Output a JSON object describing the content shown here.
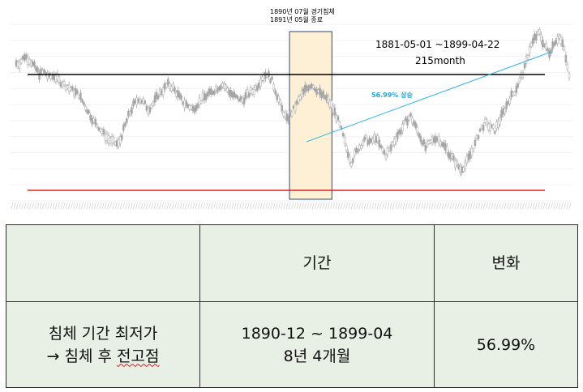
{
  "annotations": {
    "recession_line1": "1890년 07월 경기침체",
    "recession_line2": "1891년 05월 종료",
    "range": "1881-05-01  ~1899-04-22",
    "months": "215month",
    "gain": "56.99% 상승"
  },
  "table": {
    "header_col2": "기간",
    "header_col3": "변화",
    "row_label_line1": "침체 기간 최저가",
    "row_label_arrow": "→",
    "row_label_line2_a": "침체 후 ",
    "row_label_line2_b": "전고점",
    "period_line1": "1890-12 ~ 1899-04",
    "period_line2": "8년 4개월",
    "change": "56.99%"
  },
  "colors": {
    "candle": "#a6a6a6",
    "high_line": "#000000",
    "low_line": "#e02020",
    "trend_line": "#33b5e8",
    "recession_band": "#fdf0d5",
    "accent_text": "#1aa8e0"
  },
  "chart_data": {
    "type": "candlestick",
    "x_start": "1881-05",
    "x_end": "1899-04",
    "reference_lines": [
      {
        "name": "high",
        "color": "#000000",
        "level": 0.8
      },
      {
        "name": "low",
        "color": "#e02020",
        "level": 0.085
      }
    ],
    "recession_band": {
      "start": "1890-07",
      "end": "1891-05"
    },
    "trend": {
      "from": "1890-12",
      "to": "1899-04",
      "change_pct": 56.99
    },
    "close_levels": [
      0.78,
      0.82,
      0.8,
      0.76,
      0.72,
      0.73,
      0.7,
      0.71,
      0.68,
      0.66,
      0.64,
      0.62,
      0.6,
      0.55,
      0.5,
      0.45,
      0.42,
      0.38,
      0.35,
      0.33,
      0.32,
      0.4,
      0.48,
      0.54,
      0.58,
      0.56,
      0.52,
      0.55,
      0.6,
      0.63,
      0.66,
      0.64,
      0.6,
      0.56,
      0.54,
      0.52,
      0.55,
      0.58,
      0.6,
      0.62,
      0.64,
      0.66,
      0.63,
      0.6,
      0.58,
      0.57,
      0.6,
      0.62,
      0.65,
      0.7,
      0.72,
      0.68,
      0.6,
      0.52,
      0.46,
      0.5,
      0.55,
      0.6,
      0.64,
      0.66,
      0.63,
      0.6,
      0.58,
      0.54,
      0.48,
      0.4,
      0.3,
      0.22,
      0.28,
      0.32,
      0.35,
      0.33,
      0.36,
      0.3,
      0.26,
      0.3,
      0.36,
      0.4,
      0.45,
      0.48,
      0.42,
      0.36,
      0.3,
      0.33,
      0.36,
      0.34,
      0.3,
      0.26,
      0.22,
      0.18,
      0.2,
      0.26,
      0.32,
      0.4,
      0.44,
      0.42,
      0.4,
      0.46,
      0.52,
      0.58,
      0.62,
      0.68,
      0.75,
      0.86,
      0.92,
      0.95,
      0.88,
      0.84,
      0.9,
      0.93,
      0.86,
      0.7
    ]
  }
}
